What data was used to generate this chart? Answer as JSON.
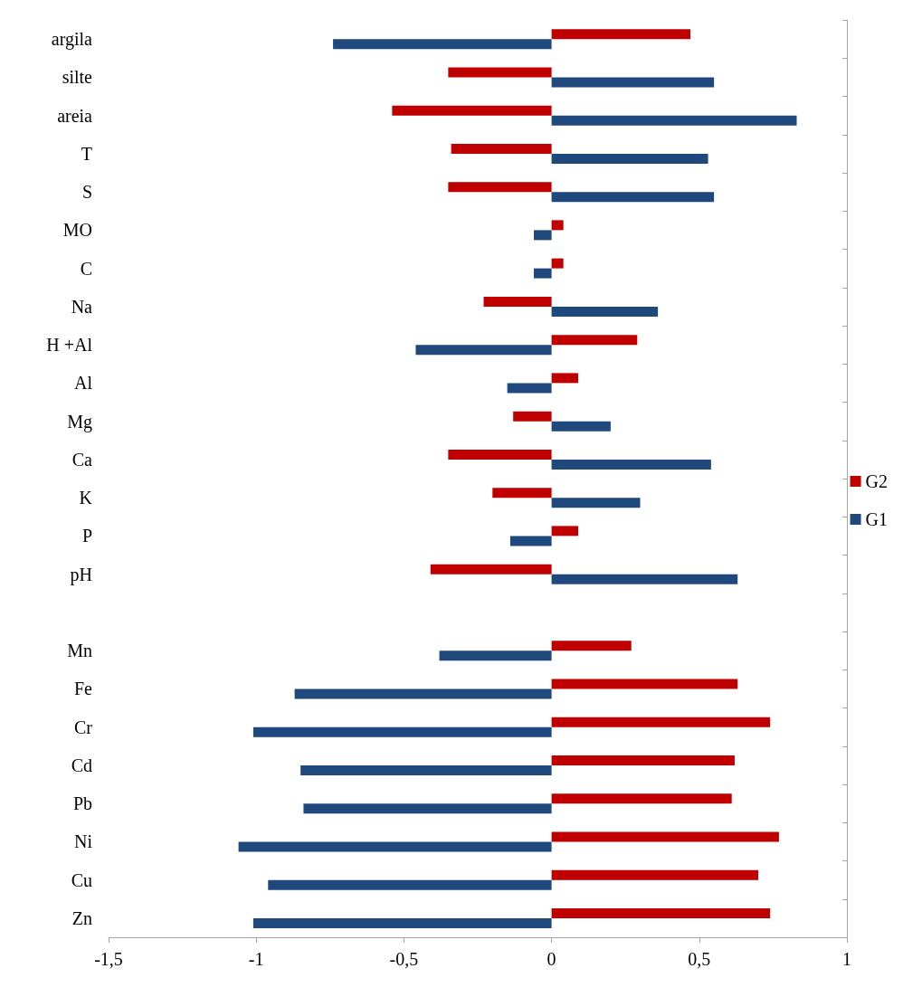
{
  "chart_data": {
    "type": "bar",
    "orientation": "horizontal",
    "categories": [
      "argila",
      "silte",
      "areia",
      "T",
      "S",
      "MO",
      "C",
      "Na",
      "H +Al",
      "Al",
      "Mg",
      "Ca",
      "K",
      "P",
      "pH",
      null,
      "Mn",
      "Fe",
      "Cr",
      "Cd",
      "Pb",
      "Ni",
      "Cu",
      "Zn"
    ],
    "series": [
      {
        "name": "G2",
        "color": "#c00000",
        "values": [
          0.47,
          -0.35,
          -0.54,
          -0.34,
          -0.35,
          0.04,
          0.04,
          -0.23,
          0.29,
          0.09,
          -0.13,
          -0.35,
          -0.2,
          0.09,
          -0.41,
          null,
          0.27,
          0.63,
          0.74,
          0.62,
          0.61,
          0.77,
          0.7,
          0.74
        ]
      },
      {
        "name": "G1",
        "color": "#1f497d",
        "values": [
          -0.74,
          0.55,
          0.83,
          0.53,
          0.55,
          -0.06,
          -0.06,
          0.36,
          -0.46,
          -0.15,
          0.2,
          0.54,
          0.3,
          -0.14,
          0.63,
          null,
          -0.38,
          -0.87,
          -1.01,
          -0.85,
          -0.84,
          -1.06,
          -0.96,
          -1.01
        ]
      }
    ],
    "xlim": [
      -1.5,
      1
    ],
    "xticks": [
      {
        "value": -1.5,
        "label": "-1,5"
      },
      -1,
      {
        "value": -0.5,
        "label": "-0,5"
      },
      0,
      {
        "value": 0.5,
        "label": "0,5"
      },
      1
    ],
    "legend": "right"
  }
}
